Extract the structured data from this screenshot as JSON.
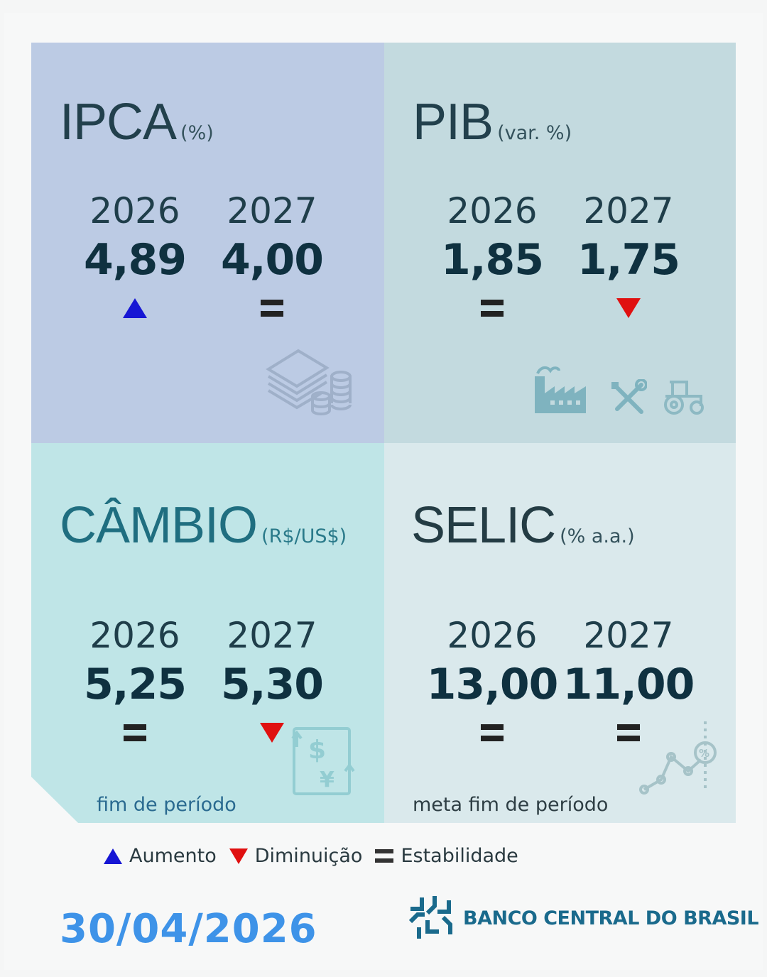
{
  "colors": {
    "up": "#1616d4",
    "down": "#e01010",
    "date": "#3e93e8",
    "bank": "#1a6a8c"
  },
  "panels": {
    "ipca": {
      "title": "IPCA",
      "unit": "(%)",
      "values": [
        {
          "year": "2026",
          "value": "4,89",
          "trend": "up"
        },
        {
          "year": "2027",
          "value": "4,00",
          "trend": "stable"
        }
      ],
      "icon": "money-stack-coins-icon"
    },
    "pib": {
      "title": "PIB",
      "unit": "(var. %)",
      "values": [
        {
          "year": "2026",
          "value": "1,85",
          "trend": "stable"
        },
        {
          "year": "2027",
          "value": "1,75",
          "trend": "down"
        }
      ],
      "icons": [
        "factory-icon",
        "tools-icon",
        "tractor-icon"
      ]
    },
    "cambio": {
      "title": "CÂMBIO",
      "unit": "(R$/US$)",
      "values": [
        {
          "year": "2026",
          "value": "5,25",
          "trend": "stable"
        },
        {
          "year": "2027",
          "value": "5,30",
          "trend": "down"
        }
      ],
      "note": "fim de período",
      "icon": "currency-exchange-icon"
    },
    "selic": {
      "title": "SELIC",
      "unit": "(% a.a.)",
      "values": [
        {
          "year": "2026",
          "value": "13,00",
          "trend": "stable"
        },
        {
          "year": "2027",
          "value": "11,00",
          "trend": "stable"
        }
      ],
      "note": "meta fim de período",
      "icon": "percent-growth-chart-icon"
    }
  },
  "legend": {
    "up": "Aumento",
    "down": "Diminuição",
    "stable": "Estabilidade"
  },
  "date": "30/04/2026",
  "bank": {
    "name": "BANCO CENTRAL DO BRASIL",
    "logo": "bcb-logo-icon"
  }
}
